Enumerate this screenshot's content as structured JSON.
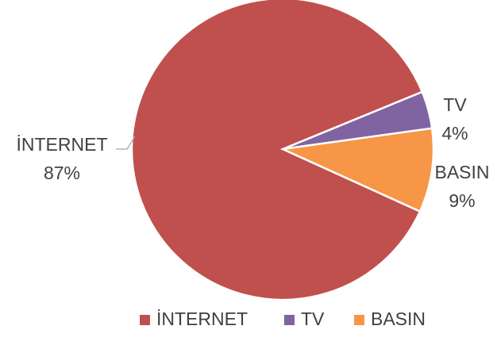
{
  "chart_data": {
    "type": "pie",
    "title": "",
    "slices": [
      {
        "label": "İNTERNET",
        "value": 87,
        "value_label": "87%",
        "color": "#C0504D"
      },
      {
        "label": "TV",
        "value": 4,
        "value_label": "4%",
        "color": "#8064A2"
      },
      {
        "label": "BASIN",
        "value": 9,
        "value_label": "9%",
        "color": "#F79646"
      }
    ],
    "legend_position": "bottom"
  }
}
